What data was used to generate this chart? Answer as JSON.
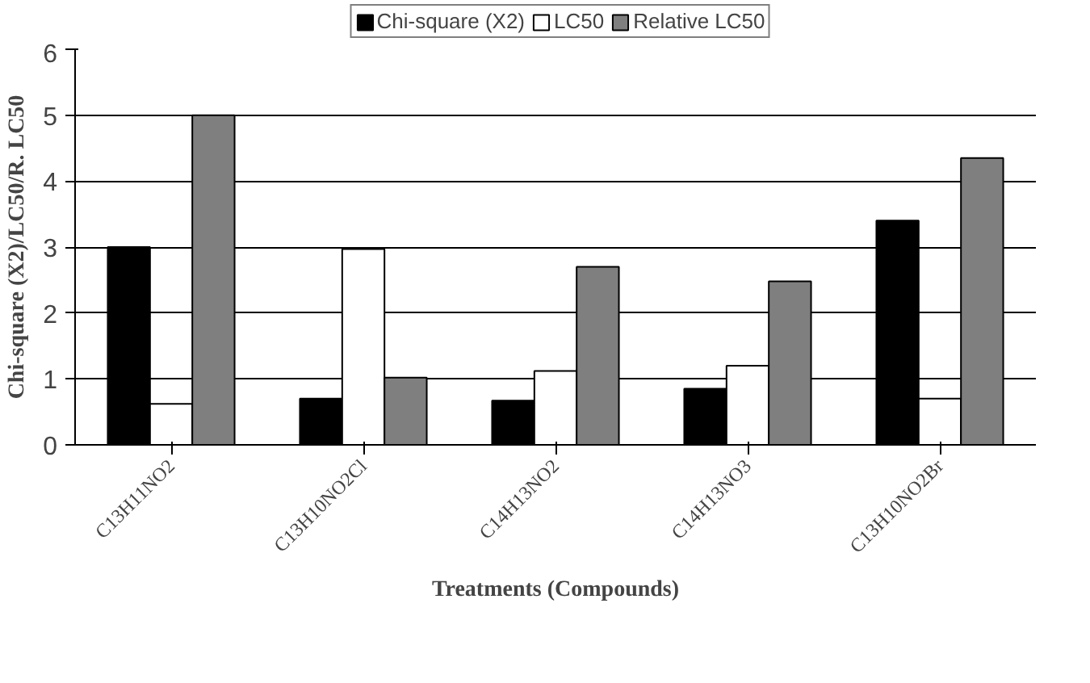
{
  "chart_data": {
    "type": "bar",
    "xlabel": "Treatments (Compounds)",
    "ylabel": "Chi-square (X2)/LC50/R. LC50",
    "categories": [
      "C13H11NO2",
      "C13H10NO2Cl",
      "C14H13NO2",
      "C14H13NO3",
      "C13H10NO2Br"
    ],
    "series": [
      {
        "name": "Chi-square (X2)",
        "color": "#000000",
        "values": [
          3.0,
          0.7,
          0.67,
          0.85,
          3.4
        ]
      },
      {
        "name": "LC50",
        "color": "#ffffff",
        "values": [
          0.62,
          2.97,
          1.12,
          1.2,
          0.7
        ]
      },
      {
        "name": "Relative LC50",
        "color": "#7f7f7f",
        "values": [
          5.0,
          1.02,
          2.7,
          2.48,
          4.35
        ]
      }
    ],
    "ylim": [
      0,
      6
    ],
    "yticks": [
      0,
      1,
      2,
      3,
      4,
      5,
      6
    ],
    "grid": "y",
    "legend": "top"
  }
}
